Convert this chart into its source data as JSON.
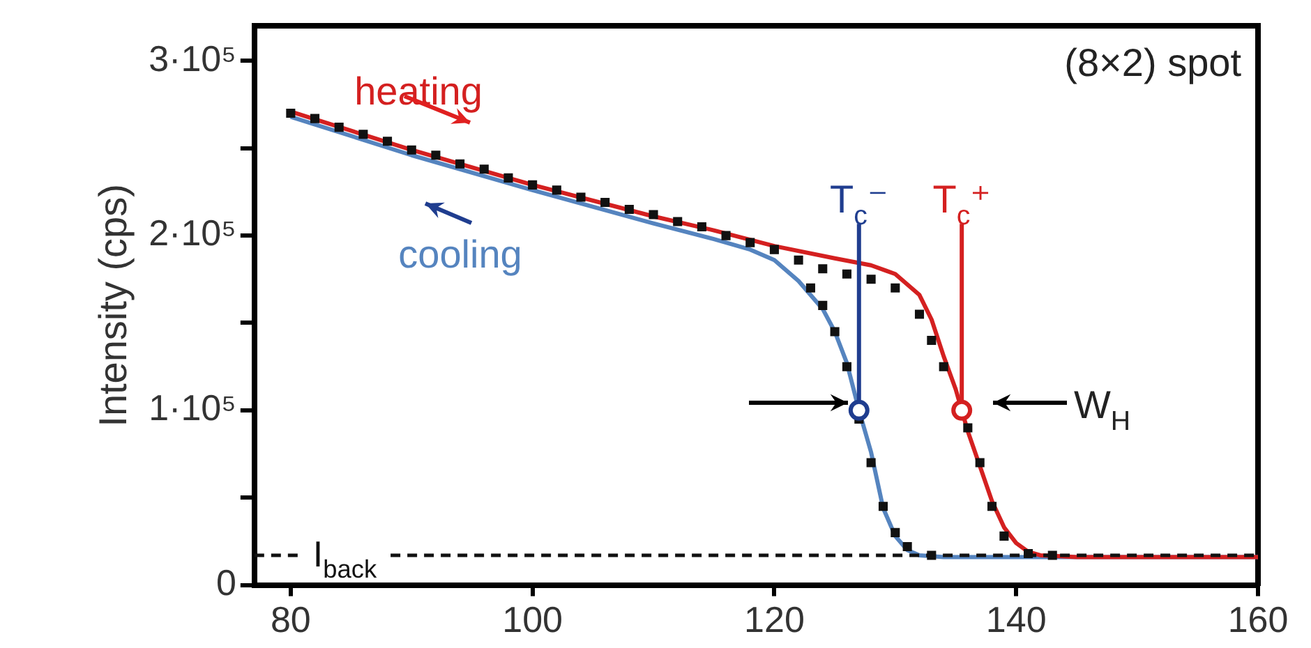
{
  "chart_data": {
    "type": "line",
    "ylabel": "Intensity (cps)",
    "xlim": [
      77,
      160
    ],
    "xticks": [
      80,
      100,
      120,
      140,
      160
    ],
    "ylim": [
      0,
      320000
    ],
    "yticks": [
      {
        "value": 0,
        "label": "0"
      },
      {
        "value": 50000,
        "label": null
      },
      {
        "value": 100000,
        "label": "1·10⁵"
      },
      {
        "value": 150000,
        "label": null
      },
      {
        "value": 200000,
        "label": "2·10⁵"
      },
      {
        "value": 250000,
        "label": null
      },
      {
        "value": 300000,
        "label": "3·10⁵"
      }
    ],
    "grid": false,
    "series": [
      {
        "type": "scatter",
        "color": "#111111",
        "marker": "square",
        "x": [
          80,
          82,
          84,
          86,
          88,
          90,
          92,
          94,
          96,
          98,
          100,
          102,
          104,
          106,
          108,
          110,
          112,
          114,
          116,
          118,
          120,
          122,
          124,
          126,
          128,
          130,
          132,
          133,
          134,
          136,
          137,
          138,
          139,
          141,
          143,
          123,
          124,
          125,
          126,
          127,
          128,
          129,
          130,
          131,
          133
        ],
        "values": [
          270000,
          267000,
          262000,
          258000,
          254000,
          249000,
          246000,
          241000,
          238000,
          233000,
          229000,
          226000,
          222000,
          219000,
          215000,
          212000,
          208000,
          205000,
          200000,
          196000,
          192000,
          186000,
          181000,
          178000,
          175000,
          170000,
          155000,
          140000,
          125000,
          90000,
          70000,
          45000,
          28000,
          18000,
          17000,
          170000,
          160000,
          145000,
          125000,
          95000,
          70000,
          45000,
          30000,
          22000,
          17000
        ]
      },
      {
        "name": "heating",
        "type": "line",
        "marker": "none",
        "line_style": "solid",
        "color": "#d42020",
        "x": [
          80,
          90,
          100,
          110,
          115,
          120,
          125,
          128,
          130,
          132,
          133,
          134,
          135,
          135.5,
          136,
          137,
          138,
          139,
          140,
          141,
          142,
          145,
          160
        ],
        "values": [
          271000,
          249000,
          229000,
          211000,
          203000,
          194000,
          187000,
          183000,
          178000,
          166000,
          152000,
          131000,
          112000,
          100000,
          88000,
          68000,
          48000,
          33000,
          24000,
          19000,
          17000,
          16000,
          16000
        ]
      },
      {
        "name": "cooling",
        "type": "line",
        "marker": "none",
        "line_style": "solid",
        "color": "#5584bf",
        "x": [
          80,
          90,
          100,
          110,
          115,
          118,
          120,
          122,
          124,
          125,
          126,
          127,
          128,
          129,
          130,
          131,
          132,
          134,
          160
        ],
        "values": [
          268000,
          246000,
          226000,
          207000,
          198000,
          192000,
          186000,
          174000,
          158000,
          145000,
          127000,
          100000,
          76000,
          44000,
          28000,
          20000,
          17000,
          16000,
          16000
        ]
      },
      {
        "type": "scatter",
        "marker": "circle",
        "colors": [
          "#1f3d8f",
          "#d42020"
        ],
        "x": [
          127,
          135.5
        ],
        "values": [
          100000,
          100000
        ]
      }
    ],
    "ref_lines": [
      {
        "axis": "y",
        "value": 17000,
        "label": "I$_{back}$",
        "color": "#111111",
        "line_style": "dashed"
      },
      {
        "axis": "x",
        "value": 127,
        "label": "T$_{c}$⁻",
        "color": "#1f3d8f"
      },
      {
        "axis": "x",
        "value": 135.5,
        "label": "T$_{c}$⁺",
        "color": "#d42020"
      }
    ],
    "annotations": [
      "(8×2) spot",
      "W$_{H}$"
    ]
  }
}
